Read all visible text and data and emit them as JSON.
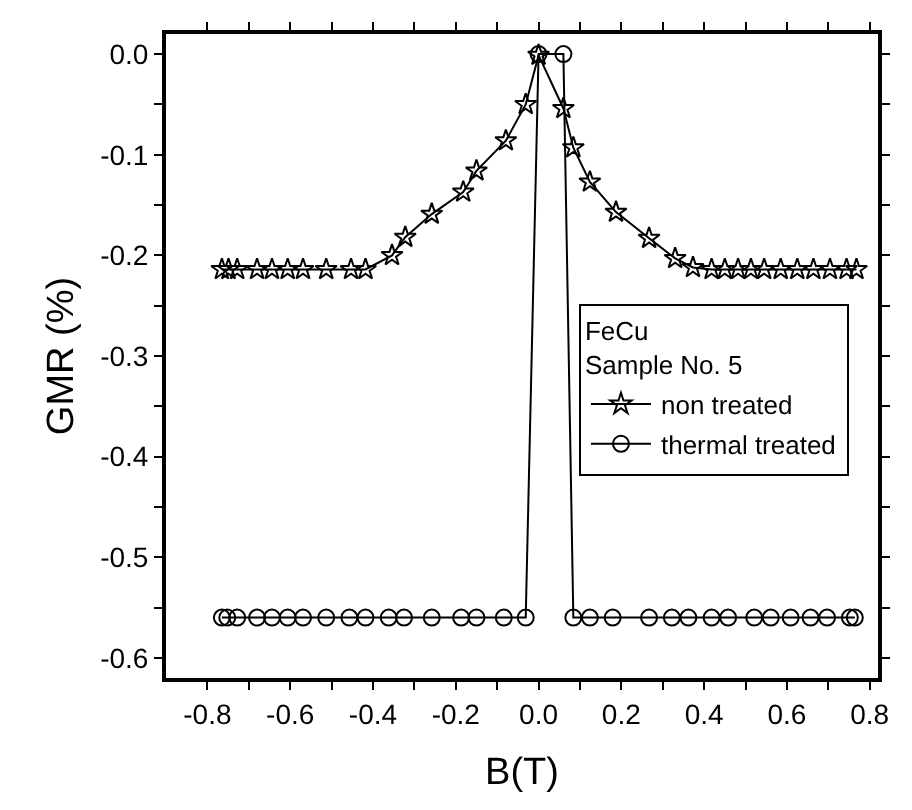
{
  "chart_data": {
    "type": "line",
    "xlabel": "B(T)",
    "ylabel": "GMR (%)",
    "legend_title": "FeCu\nSample No. 5",
    "legend": "right",
    "line_style": "solid",
    "xlim": [
      -0.9,
      0.82
    ],
    "xticks": [
      -0.8,
      {
        "value": -0.7,
        "label": null
      },
      -0.6,
      {
        "value": -0.5,
        "label": null
      },
      -0.4,
      {
        "value": -0.3,
        "label": null
      },
      -0.2,
      {
        "value": -0.1,
        "label": null
      },
      {
        "value": 0,
        "label": "0.0"
      },
      {
        "value": 0.1,
        "label": null
      },
      0.2,
      {
        "value": 0.3,
        "label": null
      },
      0.4,
      {
        "value": 0.5,
        "label": null
      },
      0.6,
      {
        "value": 0.7,
        "label": null
      },
      0.8
    ],
    "ylim": [
      -0.62,
      0.02
    ],
    "yticks": [
      {
        "value": 0,
        "label": "0.0"
      },
      {
        "value": -0.05,
        "label": null
      },
      -0.1,
      {
        "value": -0.15,
        "label": null
      },
      -0.2,
      {
        "value": -0.25,
        "label": null
      },
      -0.3,
      {
        "value": -0.35,
        "label": null
      },
      -0.4,
      {
        "value": -0.45,
        "label": null
      },
      -0.5,
      {
        "value": -0.55,
        "label": null
      },
      -0.6
    ],
    "series": [
      {
        "name": "non treated",
        "color": "#000000",
        "marker": "star",
        "x": [
          -0.765,
          -0.749,
          -0.728,
          -0.68,
          -0.644,
          -0.606,
          -0.569,
          -0.513,
          -0.453,
          -0.418,
          -0.354,
          -0.322,
          -0.258,
          -0.182,
          -0.15,
          -0.079,
          -0.031,
          0.0,
          0.06,
          0.084,
          0.124,
          0.187,
          0.267,
          0.33,
          0.373,
          0.418,
          0.45,
          0.482,
          0.513,
          0.545,
          0.585,
          0.625,
          0.664,
          0.704,
          0.744,
          0.768
        ],
        "values": [
          -0.214,
          -0.214,
          -0.214,
          -0.214,
          -0.214,
          -0.214,
          -0.214,
          -0.214,
          -0.214,
          -0.214,
          -0.2,
          -0.182,
          -0.159,
          -0.137,
          -0.116,
          -0.086,
          -0.05,
          -0.001,
          -0.054,
          -0.093,
          -0.127,
          -0.157,
          -0.183,
          -0.203,
          -0.212,
          -0.214,
          -0.214,
          -0.214,
          -0.214,
          -0.214,
          -0.214,
          -0.214,
          -0.214,
          -0.214,
          -0.214,
          -0.214
        ]
      },
      {
        "name": "thermal treated",
        "color": "#000000",
        "marker": "circle",
        "x": [
          -0.765,
          -0.752,
          -0.728,
          -0.68,
          -0.644,
          -0.606,
          -0.569,
          -0.513,
          -0.457,
          -0.418,
          -0.362,
          -0.325,
          -0.258,
          -0.187,
          -0.15,
          -0.084,
          -0.031,
          0.0,
          0.06,
          0.084,
          0.124,
          0.179,
          0.267,
          0.322,
          0.362,
          0.418,
          0.458,
          0.521,
          0.561,
          0.609,
          0.657,
          0.697,
          0.752,
          0.764
        ],
        "values": [
          -0.56,
          -0.56,
          -0.56,
          -0.56,
          -0.56,
          -0.56,
          -0.56,
          -0.56,
          -0.56,
          -0.56,
          -0.56,
          -0.56,
          -0.56,
          -0.56,
          -0.56,
          -0.56,
          -0.56,
          0.0,
          0.0,
          -0.56,
          -0.56,
          -0.56,
          -0.56,
          -0.56,
          -0.56,
          -0.56,
          -0.56,
          -0.56,
          -0.56,
          -0.56,
          -0.56,
          -0.56,
          -0.56,
          -0.56
        ]
      }
    ]
  }
}
